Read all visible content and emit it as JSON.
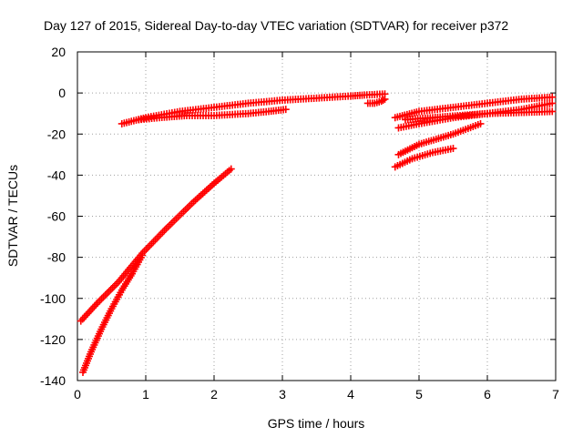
{
  "chart_data": {
    "type": "scatter",
    "title": "Day 127 of 2015, Sidereal Day-to-day VTEC variation (SDTVAR) for receiver p372",
    "xlabel": "GPS time / hours",
    "ylabel": "SDTVAR / TECUs",
    "xlim": [
      0,
      7
    ],
    "ylim": [
      -140,
      20
    ],
    "xticks": [
      "0",
      "1",
      "2",
      "3",
      "4",
      "5",
      "6",
      "7"
    ],
    "yticks": [
      "20",
      "0",
      "-20",
      "-40",
      "-60",
      "-80",
      "-100",
      "-120",
      "-140"
    ],
    "grid": true,
    "legend": "none",
    "marker": "+",
    "series_color": "#ff0000",
    "series": [
      {
        "x": [
          0.65,
          1.0,
          1.5,
          2.0,
          2.5,
          3.0,
          3.5,
          4.0,
          4.2,
          4.5
        ],
        "y": [
          -15,
          -12,
          -9,
          -7,
          -5,
          -3.5,
          -2.5,
          -1.5,
          -1,
          -0.5
        ]
      },
      {
        "x": [
          0.9,
          1.2,
          1.6,
          2.0,
          2.5,
          2.8,
          3.05
        ],
        "y": [
          -13,
          -12,
          -11,
          -11,
          -10,
          -9,
          -8
        ]
      },
      {
        "x": [
          4.25,
          4.35,
          4.45,
          4.5
        ],
        "y": [
          -5,
          -5,
          -4,
          -3
        ]
      },
      {
        "x": [
          0.05,
          0.3,
          0.6,
          0.95,
          1.3,
          1.7,
          2.0,
          2.25
        ],
        "y": [
          -111,
          -102,
          -92,
          -78,
          -66,
          -53,
          -44,
          -37
        ]
      },
      {
        "x": [
          0.08,
          0.2,
          0.35,
          0.5,
          0.65,
          0.8,
          0.95
        ],
        "y": [
          -136,
          -126,
          -115,
          -105,
          -96,
          -88,
          -79
        ]
      },
      {
        "x": [
          4.65,
          5.0,
          5.5,
          6.0,
          6.5,
          6.95
        ],
        "y": [
          -12,
          -9,
          -7,
          -5,
          -3,
          -2
        ]
      },
      {
        "x": [
          4.7,
          5.0,
          5.5,
          6.0,
          6.5,
          6.95
        ],
        "y": [
          -17,
          -15,
          -12,
          -10,
          -8,
          -5
        ]
      },
      {
        "x": [
          4.8,
          5.2,
          5.6,
          6.0,
          6.5,
          6.95
        ],
        "y": [
          -13,
          -12,
          -11,
          -10,
          -9.5,
          -9
        ]
      },
      {
        "x": [
          4.7,
          5.0,
          5.5,
          5.9
        ],
        "y": [
          -30,
          -25,
          -20,
          -15
        ]
      },
      {
        "x": [
          4.65,
          4.9,
          5.2,
          5.5
        ],
        "y": [
          -36,
          -32,
          -29,
          -27
        ]
      }
    ]
  }
}
